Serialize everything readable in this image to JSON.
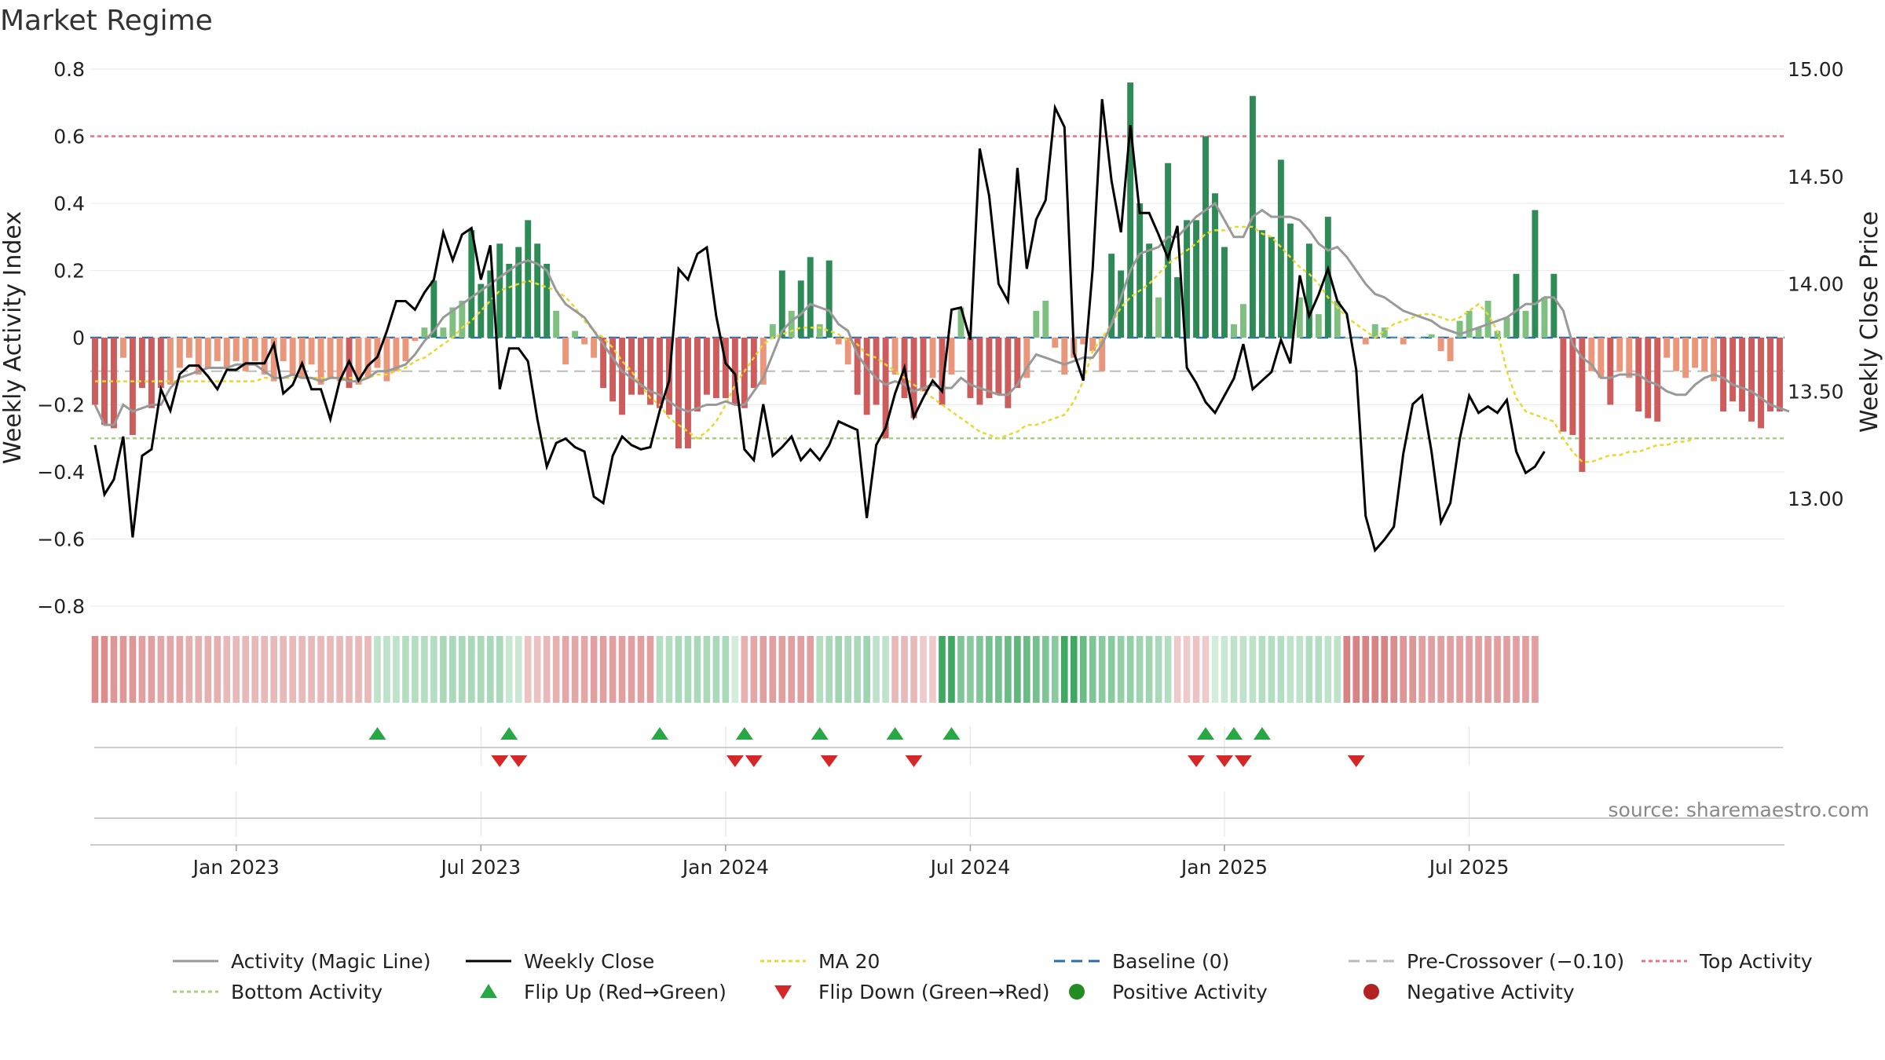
{
  "chart_data": {
    "type": "bar",
    "title": "Market Regime",
    "source": "source: sharemaestro.com",
    "ylabel_left": "Weekly Activity Index",
    "ylabel_right": "Weekly Close Price",
    "ylim_left": [
      -0.8,
      0.8
    ],
    "ylim_right": [
      12.5,
      15.0
    ],
    "yticks_left": [
      0.8,
      0.6,
      0.4,
      0.2,
      0.0,
      -0.2,
      -0.4,
      -0.6,
      -0.8
    ],
    "ytick_labels_left": [
      "0.8",
      "0.6",
      "0.4",
      "0.2",
      "0",
      "−0.2",
      "−0.4",
      "−0.6",
      "−0.8"
    ],
    "yticks_right": [
      15.0,
      14.5,
      14.0,
      13.5,
      13.0
    ],
    "ytick_labels_right": [
      "15.00",
      "14.50",
      "14.00",
      "13.50",
      "13.00"
    ],
    "x_start": "2022-09-12",
    "x_end": "2025-10-13",
    "xticks": [
      {
        "label": "Jan 2023",
        "week": 15
      },
      {
        "label": "Jul 2023",
        "week": 41
      },
      {
        "label": "Jan 2024",
        "week": 67
      },
      {
        "label": "Jul 2024",
        "week": 93
      },
      {
        "label": "Jan 2025",
        "week": 120
      },
      {
        "label": "Jul 2025",
        "week": 146
      }
    ],
    "levels": {
      "top_activity": 0.6,
      "bottom_activity": -0.3,
      "baseline": 0.0,
      "pre_crossover": -0.1
    },
    "activity": [
      -0.2,
      -0.26,
      -0.27,
      -0.06,
      -0.29,
      -0.15,
      -0.21,
      -0.15,
      -0.14,
      -0.09,
      -0.06,
      -0.11,
      -0.09,
      -0.07,
      -0.09,
      -0.07,
      -0.1,
      -0.07,
      -0.11,
      -0.13,
      -0.07,
      -0.11,
      -0.12,
      -0.08,
      -0.14,
      -0.12,
      -0.13,
      -0.15,
      -0.14,
      -0.12,
      -0.09,
      -0.13,
      -0.1,
      -0.07,
      -0.01,
      0.03,
      0.17,
      0.03,
      0.09,
      0.11,
      0.32,
      0.16,
      0.2,
      0.28,
      0.22,
      0.27,
      0.35,
      0.28,
      0.22,
      0.08,
      -0.08,
      0.02,
      -0.02,
      -0.06,
      -0.15,
      -0.19,
      -0.23,
      -0.17,
      -0.17,
      -0.2,
      -0.21,
      -0.23,
      -0.33,
      -0.33,
      -0.22,
      -0.17,
      -0.18,
      -0.18,
      -0.2,
      -0.21,
      -0.15,
      -0.14,
      0.04,
      0.2,
      0.08,
      0.17,
      0.24,
      0.04,
      0.23,
      -0.02,
      -0.08,
      -0.17,
      -0.23,
      -0.2,
      -0.3,
      -0.11,
      -0.18,
      -0.24,
      -0.16,
      -0.12,
      -0.2,
      -0.11,
      0.09,
      -0.18,
      -0.2,
      -0.18,
      -0.17,
      -0.21,
      -0.15,
      -0.12,
      0.08,
      0.11,
      -0.03,
      -0.11,
      -0.06,
      -0.02,
      -0.04,
      -0.1,
      0.25,
      0.2,
      0.76,
      0.4,
      0.28,
      0.12,
      0.52,
      0.18,
      0.35,
      0.35,
      0.6,
      0.43,
      0.27,
      0.04,
      0.1,
      0.72,
      0.32,
      0.3,
      0.53,
      0.34,
      0.12,
      0.28,
      0.07,
      0.36,
      0.11,
      0.0,
      0.0,
      -0.02,
      0.04,
      0.03,
      0.0,
      -0.02,
      -0.0,
      0.0,
      0.01,
      -0.04,
      -0.07,
      0.05,
      0.08,
      0.03,
      0.11,
      0.02,
      0.06,
      0.19,
      0.08,
      0.38,
      0.12,
      0.19,
      -0.28,
      -0.29,
      -0.4,
      -0.1,
      -0.12,
      -0.2,
      -0.1,
      -0.12,
      -0.22,
      -0.24,
      -0.25,
      -0.06,
      -0.1,
      -0.12,
      -0.09,
      -0.1,
      -0.13,
      -0.22,
      -0.19,
      -0.22,
      -0.25,
      -0.27,
      -0.22,
      -0.22
    ],
    "activity_colors": {
      "pos_strong": "#2e8b57",
      "pos_light": "#7fbf7f",
      "neg_strong": "#cd5c5c",
      "neg_light": "#e9967a"
    },
    "magic_line": [
      -0.2,
      -0.26,
      -0.26,
      -0.2,
      -0.22,
      -0.21,
      -0.2,
      -0.2,
      -0.15,
      -0.12,
      -0.11,
      -0.1,
      -0.09,
      -0.09,
      -0.09,
      -0.08,
      -0.08,
      -0.08,
      -0.1,
      -0.12,
      -0.12,
      -0.11,
      -0.12,
      -0.12,
      -0.13,
      -0.12,
      -0.12,
      -0.13,
      -0.13,
      -0.12,
      -0.1,
      -0.1,
      -0.09,
      -0.08,
      -0.05,
      -0.01,
      0.02,
      0.06,
      0.08,
      0.1,
      0.12,
      0.14,
      0.16,
      0.18,
      0.2,
      0.22,
      0.23,
      0.22,
      0.2,
      0.14,
      0.1,
      0.08,
      0.06,
      0.02,
      -0.02,
      -0.06,
      -0.1,
      -0.12,
      -0.14,
      -0.16,
      -0.17,
      -0.19,
      -0.21,
      -0.22,
      -0.21,
      -0.2,
      -0.2,
      -0.19,
      -0.2,
      -0.2,
      -0.16,
      -0.12,
      -0.05,
      0.02,
      0.05,
      0.07,
      0.1,
      0.09,
      0.08,
      0.04,
      0.02,
      -0.05,
      -0.09,
      -0.12,
      -0.14,
      -0.13,
      -0.14,
      -0.16,
      -0.15,
      -0.14,
      -0.15,
      -0.15,
      -0.12,
      -0.14,
      -0.15,
      -0.16,
      -0.17,
      -0.17,
      -0.14,
      -0.09,
      -0.05,
      -0.06,
      -0.07,
      -0.08,
      -0.07,
      -0.06,
      -0.06,
      -0.02,
      0.04,
      0.12,
      0.2,
      0.25,
      0.26,
      0.27,
      0.3,
      0.3,
      0.33,
      0.36,
      0.38,
      0.4,
      0.35,
      0.3,
      0.3,
      0.36,
      0.38,
      0.36,
      0.36,
      0.36,
      0.35,
      0.32,
      0.28,
      0.26,
      0.27,
      0.24,
      0.2,
      0.16,
      0.13,
      0.12,
      0.1,
      0.08,
      0.07,
      0.06,
      0.05,
      0.03,
      0.02,
      0.01,
      0.02,
      0.03,
      0.04,
      0.05,
      0.06,
      0.08,
      0.1,
      0.1,
      0.12,
      0.12,
      0.08,
      -0.02,
      -0.06,
      -0.08,
      -0.12,
      -0.12,
      -0.11,
      -0.11,
      -0.11,
      -0.13,
      -0.14,
      -0.16,
      -0.17,
      -0.17,
      -0.14,
      -0.12,
      -0.11,
      -0.12,
      -0.14,
      -0.15,
      -0.16,
      -0.18,
      -0.2,
      -0.21,
      -0.22
    ],
    "weekly_close": [
      13.25,
      13.02,
      13.09,
      13.29,
      12.82,
      13.2,
      13.23,
      13.51,
      13.41,
      13.58,
      13.62,
      13.62,
      13.57,
      13.51,
      13.6,
      13.6,
      13.63,
      13.63,
      13.63,
      13.72,
      13.49,
      13.53,
      13.63,
      13.51,
      13.51,
      13.37,
      13.55,
      13.64,
      13.55,
      13.62,
      13.66,
      13.78,
      13.92,
      13.92,
      13.88,
      13.96,
      14.02,
      14.24,
      14.11,
      14.23,
      14.26,
      14.02,
      14.18,
      13.51,
      13.7,
      13.7,
      13.64,
      13.37,
      13.15,
      13.26,
      13.28,
      13.24,
      13.22,
      13.01,
      12.98,
      13.2,
      13.29,
      13.25,
      13.23,
      13.24,
      13.41,
      13.55,
      14.07,
      14.02,
      14.14,
      14.17,
      13.85,
      13.63,
      13.58,
      13.23,
      13.18,
      13.44,
      13.2,
      13.24,
      13.29,
      13.18,
      13.23,
      13.18,
      13.25,
      13.36,
      13.34,
      13.32,
      12.91,
      13.25,
      13.33,
      13.49,
      13.61,
      13.38,
      13.47,
      13.55,
      13.5,
      13.88,
      13.89,
      13.74,
      14.63,
      14.41,
      14.0,
      13.92,
      14.54,
      14.07,
      14.3,
      14.39,
      14.82,
      14.73,
      13.68,
      13.55,
      14.07,
      14.86,
      14.48,
      14.24,
      14.74,
      14.33,
      14.33,
      14.23,
      14.12,
      14.27,
      13.61,
      13.54,
      13.45,
      13.4,
      13.48,
      13.56,
      13.72,
      13.51,
      13.55,
      13.59,
      13.74,
      13.63,
      14.04,
      13.85,
      13.95,
      14.07,
      13.92,
      13.86,
      13.6,
      12.92,
      12.76,
      12.81,
      12.87,
      13.21,
      13.44,
      13.48,
      13.22,
      12.89,
      12.98,
      13.28,
      13.48,
      13.4,
      13.43,
      13.4,
      13.46,
      13.22,
      13.12,
      13.15,
      13.22
    ],
    "ma20": [
      -0.13,
      -0.13,
      -0.13,
      -0.13,
      -0.13,
      -0.13,
      -0.13,
      -0.13,
      -0.13,
      -0.13,
      -0.13,
      -0.13,
      -0.13,
      -0.13,
      -0.13,
      -0.13,
      -0.13,
      -0.13,
      -0.12,
      -0.12,
      -0.12,
      -0.12,
      -0.12,
      -0.12,
      -0.12,
      -0.12,
      -0.12,
      -0.12,
      -0.12,
      -0.12,
      -0.11,
      -0.11,
      -0.1,
      -0.09,
      -0.07,
      -0.06,
      -0.04,
      -0.02,
      0.0,
      0.03,
      0.05,
      0.08,
      0.11,
      0.14,
      0.15,
      0.16,
      0.17,
      0.16,
      0.15,
      0.14,
      0.12,
      0.09,
      0.05,
      0.02,
      0.0,
      -0.03,
      -0.07,
      -0.1,
      -0.14,
      -0.18,
      -0.2,
      -0.24,
      -0.26,
      -0.28,
      -0.3,
      -0.28,
      -0.25,
      -0.2,
      -0.14,
      -0.1,
      -0.06,
      -0.02,
      0.0,
      0.01,
      0.02,
      0.03,
      0.03,
      0.03,
      0.02,
      0.01,
      -0.01,
      -0.02,
      -0.05,
      -0.06,
      -0.08,
      -0.1,
      -0.12,
      -0.14,
      -0.16,
      -0.18,
      -0.2,
      -0.22,
      -0.24,
      -0.26,
      -0.28,
      -0.29,
      -0.3,
      -0.29,
      -0.28,
      -0.26,
      -0.26,
      -0.25,
      -0.24,
      -0.23,
      -0.19,
      -0.13,
      -0.04,
      0.0,
      0.04,
      0.09,
      0.12,
      0.14,
      0.16,
      0.19,
      0.22,
      0.24,
      0.26,
      0.28,
      0.31,
      0.32,
      0.32,
      0.33,
      0.33,
      0.33,
      0.31,
      0.3,
      0.27,
      0.24,
      0.21,
      0.19,
      0.16,
      0.12,
      0.09,
      0.06,
      0.04,
      0.02,
      0.0,
      0.02,
      0.04,
      0.05,
      0.06,
      0.07,
      0.07,
      0.06,
      0.05,
      0.06,
      0.08,
      0.1,
      0.07,
      0.02,
      -0.1,
      -0.18,
      -0.22,
      -0.23,
      -0.24,
      -0.25,
      -0.3,
      -0.34,
      -0.37,
      -0.37,
      -0.36,
      -0.35,
      -0.35,
      -0.34,
      -0.34,
      -0.33,
      -0.32,
      -0.32,
      -0.31,
      -0.31,
      -0.3
    ],
    "flip_up_weeks": [
      30,
      44,
      60,
      69,
      77,
      85,
      91,
      118,
      121,
      124
    ],
    "flip_down_weeks": [
      43,
      45,
      68,
      70,
      78,
      87,
      117,
      120,
      122,
      134
    ],
    "regime_strength": [
      -0.65,
      -0.65,
      -0.6,
      -0.6,
      -0.6,
      -0.55,
      -0.55,
      -0.5,
      -0.5,
      -0.5,
      -0.45,
      -0.45,
      -0.45,
      -0.45,
      -0.4,
      -0.4,
      -0.4,
      -0.4,
      -0.4,
      -0.4,
      -0.4,
      -0.4,
      -0.4,
      -0.4,
      -0.4,
      -0.4,
      -0.4,
      -0.4,
      -0.4,
      -0.4,
      0.3,
      0.3,
      0.3,
      0.35,
      0.35,
      0.35,
      0.35,
      0.4,
      0.4,
      0.4,
      0.4,
      0.4,
      0.4,
      0.4,
      0.25,
      0.25,
      -0.35,
      -0.35,
      -0.4,
      -0.45,
      -0.5,
      -0.5,
      -0.5,
      -0.55,
      -0.55,
      -0.55,
      -0.55,
      -0.55,
      -0.55,
      -0.55,
      0.35,
      0.35,
      0.4,
      0.4,
      0.4,
      0.4,
      0.4,
      0.4,
      0.2,
      -0.45,
      -0.5,
      -0.55,
      -0.55,
      -0.55,
      -0.55,
      -0.55,
      -0.55,
      0.35,
      0.4,
      0.45,
      0.4,
      0.4,
      0.45,
      0.3,
      0.3,
      -0.4,
      -0.4,
      -0.4,
      -0.3,
      -0.3,
      0.9,
      0.9,
      0.6,
      0.55,
      0.6,
      0.65,
      0.65,
      0.7,
      0.75,
      0.7,
      0.65,
      0.6,
      0.55,
      0.9,
      0.9,
      0.7,
      0.6,
      0.55,
      0.55,
      0.5,
      0.5,
      0.45,
      0.45,
      0.4,
      0.35,
      -0.3,
      -0.3,
      -0.35,
      -0.3,
      0.2,
      0.25,
      0.3,
      0.3,
      0.3,
      0.35,
      0.35,
      0.35,
      0.3,
      0.3,
      0.35,
      0.35,
      0.3,
      0.3,
      -0.7,
      -0.7,
      -0.7,
      -0.7,
      -0.7,
      -0.65,
      -0.6,
      -0.6,
      -0.55,
      -0.55,
      -0.55,
      -0.55,
      -0.55,
      -0.55,
      -0.55,
      -0.55,
      -0.55,
      -0.55,
      -0.55,
      -0.55,
      -0.55
    ],
    "legend": [
      {
        "label": "Activity (Magic Line)",
        "kind": "line",
        "color": "#999999",
        "dash": ""
      },
      {
        "label": "Weekly Close",
        "kind": "line",
        "color": "#000000",
        "dash": ""
      },
      {
        "label": "MA 20",
        "kind": "line",
        "color": "#e8d830",
        "dash": "5,4"
      },
      {
        "label": "Baseline (0)",
        "kind": "line",
        "color": "#2c6fa8",
        "dash": "14,8"
      },
      {
        "label": "Pre-Crossover (−0.10)",
        "kind": "line",
        "color": "#bbbbbb",
        "dash": "14,8"
      },
      {
        "label": "Top Activity",
        "kind": "line",
        "color": "#e8708a",
        "dash": "5,4"
      },
      {
        "label": "Bottom Activity",
        "kind": "line",
        "color": "#a8d080",
        "dash": "5,4"
      },
      {
        "label": "Flip Up (Red→Green)",
        "kind": "tri-up",
        "color": "#28a745",
        "dash": ""
      },
      {
        "label": "Flip Down (Green→Red)",
        "kind": "tri-down",
        "color": "#d62728",
        "dash": ""
      },
      {
        "label": "Positive Activity",
        "kind": "dot",
        "color": "#228b22",
        "dash": ""
      },
      {
        "label": "Negative Activity",
        "kind": "dot",
        "color": "#b22222",
        "dash": ""
      }
    ]
  }
}
